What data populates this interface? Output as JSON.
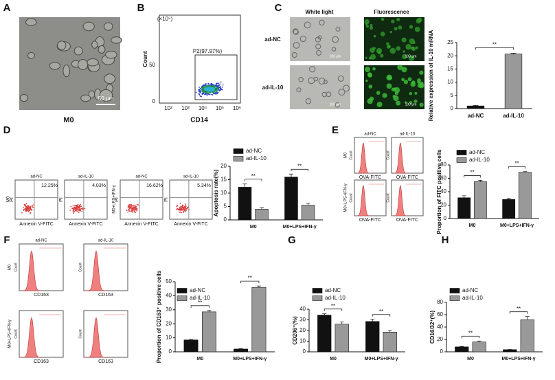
{
  "figure": {
    "panels": [
      "A",
      "B",
      "C",
      "D",
      "E",
      "F",
      "G",
      "H"
    ],
    "a_label": "M0",
    "a_scale": "50 μm",
    "b_ylabel": "Count",
    "b_xlabel": "CD14",
    "b_gate": "P2(97.97%)",
    "b_exp": "(×10⁵)",
    "b_yticks": [
      "0",
      "50"
    ],
    "b_xticks": [
      "10²",
      "10³",
      "10⁴",
      "10⁵",
      "10⁶"
    ],
    "c_cols": [
      "White light",
      "Fluorescence"
    ],
    "c_rows": [
      "ad-NC",
      "ad-IL-10"
    ],
    "c_scale": "100 μm",
    "d_plots": [
      {
        "title": "ad-NC",
        "pct": "12.25%"
      },
      {
        "title": "ad-IL-10",
        "pct": "4.03%"
      },
      {
        "title": "ad-NC",
        "pct": "16.62%"
      },
      {
        "title": "ad-IL-10",
        "pct": "5.34%"
      }
    ],
    "rows": [
      "M0",
      "M0+LPS+IFN-γ"
    ],
    "d_xlabel": "Annexin V-FITC",
    "d_ylabel": "PI",
    "hist_titles": [
      "ad-NC",
      "ad-IL-10"
    ],
    "hist_ylabel": "Count",
    "e_xlabel": "OVA-FITC",
    "f_xlabel": "CD163"
  },
  "chart_data": [
    {
      "type": "bar",
      "ylabel": "Relative expression of IL-10 mRNA",
      "categories": [
        "ad-NC",
        "ad-IL-10"
      ],
      "values": [
        1,
        20.7
      ],
      "errors": [
        0.2,
        0.3
      ],
      "colors": [
        "#111111",
        "#999999"
      ],
      "significance": "**",
      "ylim": [
        0,
        25
      ],
      "yticks": [
        0,
        5,
        10,
        15,
        20,
        25
      ]
    },
    {
      "type": "grouped_bar",
      "ylabel": "Apoptosis rate(%)",
      "categories": [
        "M0",
        "M0+LPS+IFN-γ"
      ],
      "series": [
        {
          "name": "ad-NC",
          "color": "#111111",
          "values": [
            12.2,
            16
          ],
          "errors": [
            1.2,
            1.1
          ]
        },
        {
          "name": "ad-IL-10",
          "color": "#999999",
          "values": [
            4,
            5.5
          ],
          "errors": [
            0.5,
            0.7
          ]
        }
      ],
      "significance": "**",
      "ylim": [
        0,
        20
      ],
      "yticks": [
        0,
        5,
        10,
        15,
        20
      ]
    },
    {
      "type": "grouped_bar",
      "ylabel": "Proportion of FITC positive cells",
      "categories": [
        "M0",
        "M0+LPS+IFN-γ"
      ],
      "series": [
        {
          "name": "ad-NC",
          "color": "#111111",
          "values": [
            31,
            28.5
          ],
          "errors": [
            3,
            1.5
          ]
        },
        {
          "name": "ad-IL-10",
          "color": "#999999",
          "values": [
            55,
            69
          ],
          "errors": [
            2,
            1.5
          ]
        }
      ],
      "significance": "**",
      "ylim": [
        0,
        80
      ],
      "yticks": [
        0,
        20,
        40,
        60,
        80
      ]
    },
    {
      "type": "grouped_bar",
      "ylabel": "Proportion of CD163⁺ positive cells",
      "categories": [
        "M0",
        "M0+LPS+IFN-γ"
      ],
      "series": [
        {
          "name": "ad-NC",
          "color": "#111111",
          "values": [
            8.5,
            2
          ],
          "errors": [
            0.4,
            0.3
          ]
        },
        {
          "name": "ad-IL-10",
          "color": "#999999",
          "values": [
            28.5,
            46
          ],
          "errors": [
            1,
            1
          ]
        }
      ],
      "significance": "**",
      "ylim": [
        0,
        50
      ],
      "yticks": [
        0,
        10,
        20,
        30,
        40,
        50
      ]
    },
    {
      "type": "grouped_bar",
      "ylabel": "CD206⁺(%)",
      "categories": [
        "M0",
        "M0+LPS+IFN-γ"
      ],
      "series": [
        {
          "name": "ad-NC",
          "color": "#111111",
          "values": [
            34.5,
            28.5
          ],
          "errors": [
            1.2,
            2
          ]
        },
        {
          "name": "ad-IL-10",
          "color": "#999999",
          "values": [
            26,
            18.5
          ],
          "errors": [
            2,
            1.5
          ]
        }
      ],
      "significance": "**",
      "ylim": [
        0,
        40
      ],
      "yticks": [
        0,
        10,
        20,
        30,
        40
      ]
    },
    {
      "type": "grouped_bar",
      "ylabel": "CD16/32⁺(%)",
      "categories": [
        "M0",
        "M0+LPS+IFN-γ"
      ],
      "series": [
        {
          "name": "ad-NC",
          "color": "#111111",
          "values": [
            8,
            3.5
          ],
          "errors": [
            0.8,
            0.4
          ]
        },
        {
          "name": "ad-IL-10",
          "color": "#999999",
          "values": [
            16,
            52
          ],
          "errors": [
            1.5,
            5
          ]
        }
      ],
      "significance": "**",
      "ylim": [
        0,
        80
      ],
      "yticks": [
        0,
        20,
        40,
        60,
        80
      ]
    }
  ]
}
